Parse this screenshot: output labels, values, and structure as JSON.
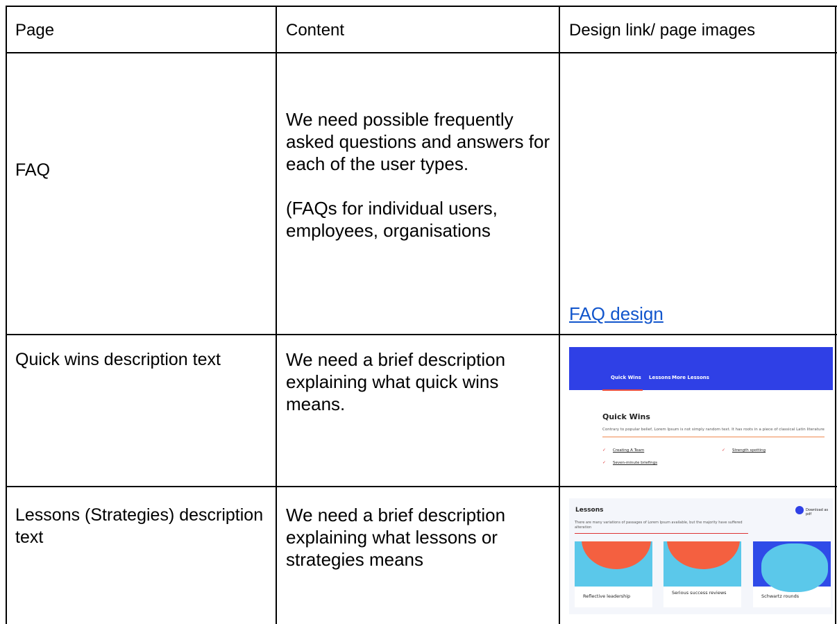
{
  "table": {
    "header": [
      "Page",
      "Content",
      "Design link/ page images"
    ],
    "rows": [
      {
        "page": "FAQ",
        "content": [
          "We need possible frequently asked questions and answers for each of the user types.",
          "(FAQs for individual users, employees, organisations"
        ],
        "link": "FAQ design"
      },
      {
        "page": "Quick wins description text",
        "content": [
          "We need a brief description explaining what quick wins means."
        ],
        "image": {
          "nav": [
            "Quick Wins",
            "Lessons",
            "More Lessons"
          ],
          "heading": "Quick Wins",
          "description": "Contrary to popular belief, Lorem Ipsum is not simply random text. It has roots in a piece of classical Latin literature",
          "items": [
            "Creating A Team",
            "Strength spotting",
            "Seven-minute briefings"
          ]
        }
      },
      {
        "page": "Lessons (Strategies) description text",
        "content": [
          "We need a brief description explaining what lessons or strategies means"
        ],
        "image": {
          "heading": "Lessons",
          "download": "Download as pdf",
          "description": "There are many variations of passages of Lorem Ipsum available, but the majority have suffered alteration",
          "cards": [
            "Reflective leadership",
            "Serious success reviews",
            "Schwartz rounds"
          ]
        }
      }
    ]
  }
}
